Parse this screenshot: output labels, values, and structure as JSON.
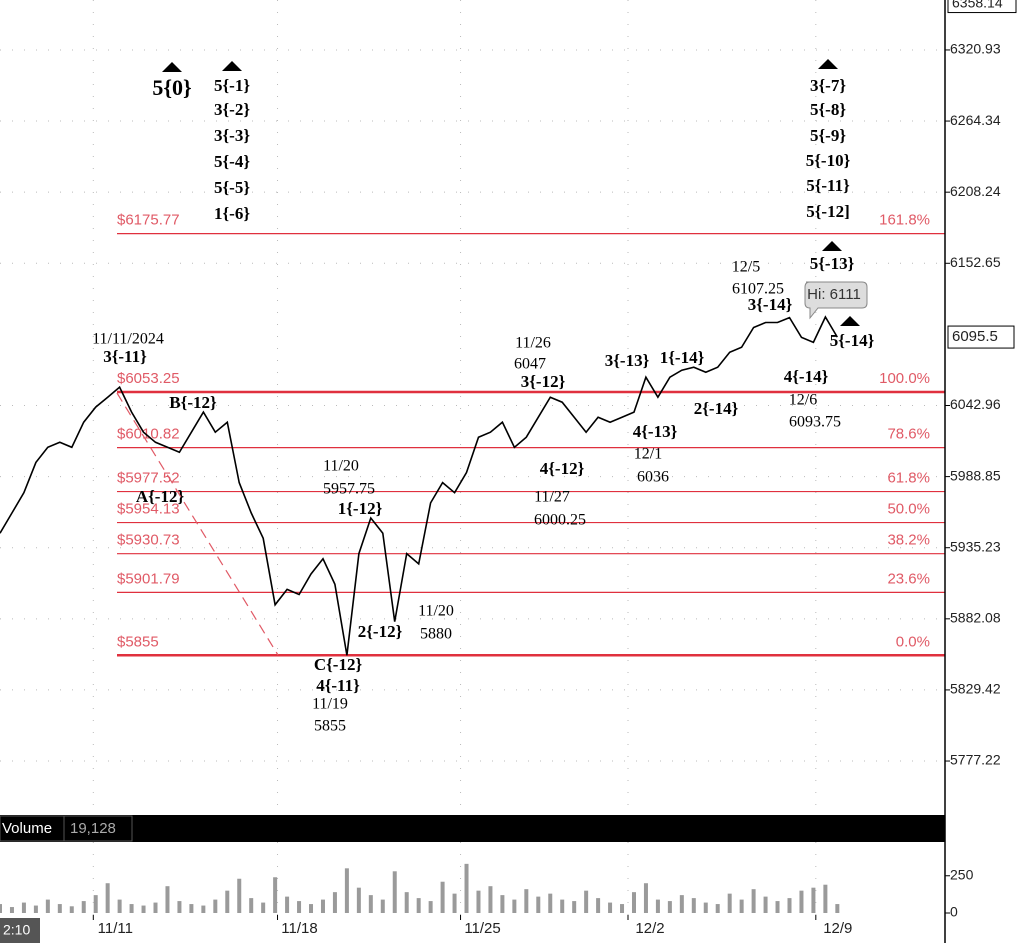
{
  "chart_data": [
    {
      "type": "line",
      "series": [
        {
          "color": "#000000",
          "x": [
            0,
            1,
            2,
            3,
            4,
            5,
            6,
            7,
            8,
            9,
            10,
            11,
            12,
            13,
            14,
            15,
            16,
            17,
            18,
            19,
            20,
            21,
            22,
            23,
            24,
            25,
            26,
            27,
            28,
            29,
            30,
            31,
            32,
            33,
            34,
            35,
            36,
            37,
            38,
            39,
            40,
            41,
            42,
            43,
            44,
            45,
            46,
            47,
            48,
            49,
            50,
            51,
            52,
            53,
            54,
            55,
            56,
            57,
            58,
            59,
            60,
            61,
            62,
            63,
            64,
            65,
            66,
            67,
            68,
            69,
            70
          ],
          "values": [
            5946.1,
            5961.4,
            5976.7,
            5999.6,
            6011.1,
            6014.9,
            6011.1,
            6030.2,
            6041.7,
            6049.3,
            6057.0,
            6037.9,
            6022.6,
            6014.9,
            6011.1,
            6007.3,
            6022.6,
            6037.9,
            6022.6,
            6030.2,
            5984.3,
            5961.4,
            5942.3,
            5892.5,
            5904.0,
            5900.2,
            5915.5,
            5926.9,
            5907.8,
            5855,
            5930.8,
            5957.6,
            5946.1,
            5880,
            5930.8,
            5923.1,
            5969.0,
            5984.3,
            5976.7,
            5992.0,
            6018.8,
            6022.6,
            6030.2,
            6011.1,
            6018.8,
            6034.0,
            6049.3,
            6045.5,
            6034.0,
            6022.6,
            6034.0,
            6030.2,
            6034.0,
            6037.9,
            6064.6,
            6049.3,
            6064.6,
            6070.0,
            6072.3,
            6068.5,
            6072.3,
            6083.8,
            6087.6,
            6102.9,
            6106.7,
            6106.7,
            6110.5,
            6095.2,
            6091.4,
            6111,
            6095.5
          ]
        }
      ],
      "log_scale": true,
      "grid": true,
      "xlim": [
        0,
        79
      ],
      "xticks": [
        {
          "value": 7.8,
          "label": "11/11"
        },
        {
          "value": 23.2,
          "label": "11/18"
        },
        {
          "value": 38.5,
          "label": "11/25"
        },
        {
          "value": 52.5,
          "label": "12/2"
        },
        {
          "value": 68.2,
          "label": "12/9"
        }
      ],
      "ylim": [
        5743,
        6361
      ],
      "yticks": [
        6320.93,
        6264.34,
        6208.24,
        6152.65,
        6042.96,
        5988.85,
        5935.23,
        5882.08,
        5829.42,
        5777.22
      ],
      "range_high": 6358.14,
      "last_price": 6095.5,
      "fib_levels": [
        {
          "value": 6175.77,
          "label": "$6175.77",
          "percent": "161.8%"
        },
        {
          "value": 6053.25,
          "label": "$6053.25",
          "percent": "100.0%"
        },
        {
          "value": 6010.82,
          "label": "$6010.82",
          "percent": "78.6%"
        },
        {
          "value": 5977.52,
          "label": "$5977.52",
          "percent": "61.8%"
        },
        {
          "value": 5954.13,
          "label": "$5954.13",
          "percent": "50.0%"
        },
        {
          "value": 5930.73,
          "label": "$5930.73",
          "percent": "38.2%"
        },
        {
          "value": 5901.79,
          "label": "$5901.79",
          "percent": "23.6%"
        },
        {
          "value": 5855,
          "label": "$5855",
          "percent": "0.0%"
        }
      ],
      "annotations": [
        "5{0}",
        "5{-1}",
        "3{-2}",
        "3{-3}",
        "5{-4}",
        "5{-5}",
        "1{-6}",
        "3{-7}",
        "5{-8}",
        "5{-9}",
        "5{-10}",
        "5{-11}",
        "5{-12]",
        "5{-13}",
        "12/5",
        "6107.25",
        "3{-14}",
        "Hi: 6111",
        "5{-14}",
        "11/11/2024",
        "3{-11}",
        "B{-12}",
        "A{-12}",
        "11/20",
        "5957.75",
        "1{-12}",
        "11/26",
        "6047",
        "3{-12}",
        "3{-13}",
        "1{-14}",
        "4{-14}",
        "12/6",
        "6093.75",
        "2{-14}",
        "4{-13}",
        "12/1",
        "6036",
        "4{-12}",
        "11/27",
        "6000.25",
        "2{-12}",
        "11/20",
        "5880",
        "C{-12}",
        "4{-11}",
        "11/19",
        "5855"
      ]
    },
    {
      "type": "bar",
      "title": "Volume",
      "last_value_label": "19,128",
      "time_label": "2:10",
      "color": "#9a9a9a",
      "ylim": [
        0,
        470
      ],
      "yticks": [
        0,
        250
      ],
      "values": [
        60,
        40,
        70,
        50,
        90,
        60,
        45,
        80,
        120,
        200,
        90,
        60,
        50,
        70,
        180,
        80,
        60,
        50,
        90,
        150,
        230,
        100,
        70,
        240,
        110,
        80,
        60,
        90,
        140,
        300,
        170,
        120,
        90,
        280,
        140,
        100,
        80,
        210,
        130,
        330,
        150,
        180,
        120,
        90,
        160,
        110,
        130,
        90,
        80,
        150,
        100,
        70,
        60,
        140,
        200,
        90,
        80,
        120,
        100,
        70,
        60,
        130,
        90,
        160,
        110,
        80,
        100,
        150,
        170,
        190,
        60
      ]
    }
  ]
}
